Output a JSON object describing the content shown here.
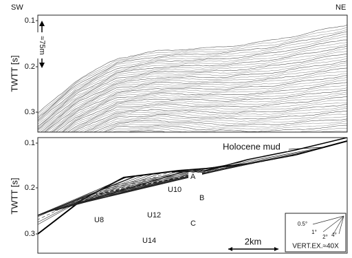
{
  "header": {
    "left": "SW",
    "right": "NE"
  },
  "panels": [
    {
      "y_label": "TWTT [s]",
      "ticks": [
        0.1,
        0.2,
        0.3
      ],
      "scale_label": "≈75m"
    },
    {
      "y_label": "TWTT [s]",
      "ticks": [
        0.1,
        0.2,
        0.3
      ],
      "annotations": [
        "Holocene mud",
        "A",
        "U10",
        "B",
        "U8",
        "U12",
        "C",
        "U14"
      ],
      "scale_bar": "2km",
      "dip_labels": [
        "0.5°",
        "1°",
        "2°",
        "4°"
      ],
      "vertical_exaggeration": "VERT.EX.≈40X"
    }
  ]
}
